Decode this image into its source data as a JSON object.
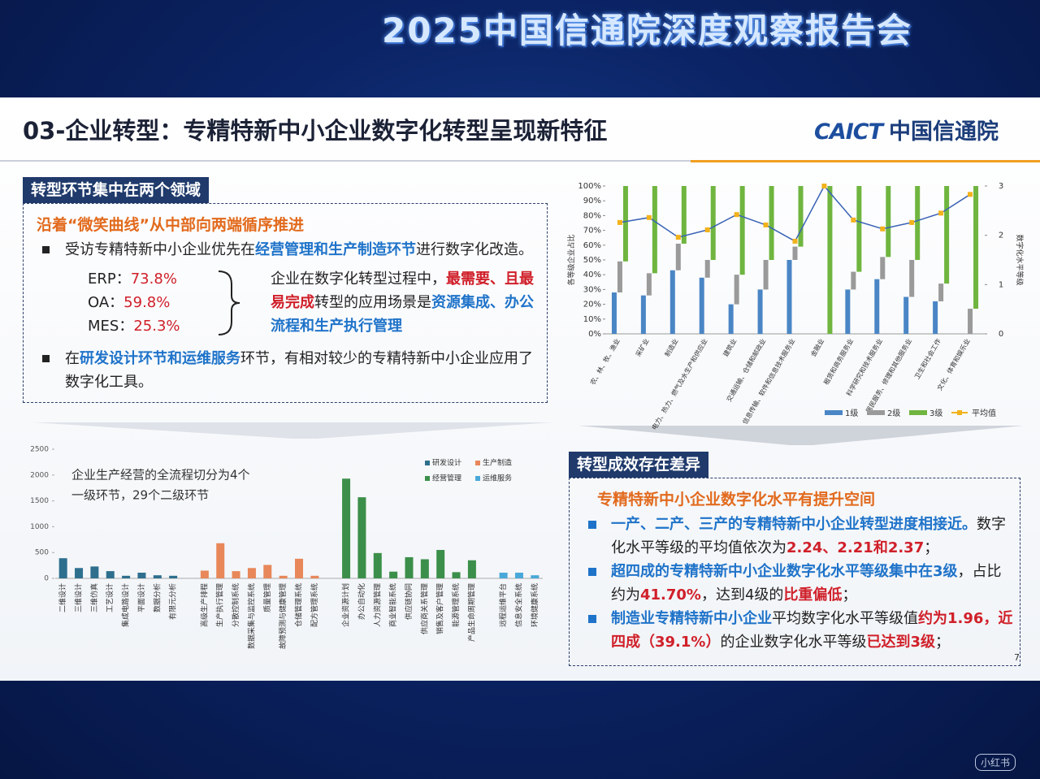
{
  "banner": {
    "title": "2025中国信通院深度观察报告会"
  },
  "slide": {
    "title": "03-企业转型：专精特新中小企业数字化转型呈现新特征",
    "logo_en": "CAICT",
    "logo_cn": "中国信通院",
    "page_number": "7"
  },
  "left": {
    "tag": "转型环节集中在两个领域",
    "heading": "沿着“微笑曲线”从中部向两端循序推进",
    "bullet1": [
      "受访专精特新中小企业优先在",
      "经营管理和生产制造环节",
      "进行数字化改造。"
    ],
    "items": [
      {
        "label": "ERP：",
        "value": "73.8%"
      },
      {
        "label": "OA：",
        "value": "59.8%"
      },
      {
        "label": "MES：",
        "value": "25.3%"
      }
    ],
    "note": [
      "企业在数字化转型过程中，",
      "最需要、且最易完成",
      "转型的应用场景是",
      "资源集成、办公流程和生产执行管理"
    ],
    "bullet2": [
      "在",
      "研发设计环节和运维服务",
      "环节，有相对较少的专精特新中小企业应用了数字化工具。"
    ]
  },
  "right": {
    "tag": "转型成效存在差异",
    "heading": "专精特新中小企业数字化水平有提升空间",
    "bullets": [
      [
        "一产、二产、三产的专精特新中小企业转型进度相接近。",
        "数字化水平等级的平均值依次为",
        "2.24、2.21和2.37",
        "；"
      ],
      [
        "超四成的专精特新中小企业数字化水平等级集中在3级",
        "，占比约为",
        "41.70%",
        "，达到4级的",
        "比重偏低",
        "；"
      ],
      [
        "制造业专精特新中小企业",
        "平均数字化水平等级值",
        "约为1.96，近四成（39.1%）",
        "的企业数字化水平等级",
        "已达到3级",
        "；"
      ]
    ]
  },
  "watermark": "小红书",
  "chart_data": [
    {
      "type": "stacked-bar-line",
      "y_label": "各等级企业占比",
      "y2_label": "数字化水平等级",
      "categories": [
        "农、林、牧、渔业",
        "采矿业",
        "制造业",
        "电力、热力、燃气及水生产和供应业",
        "建筑业",
        "交通运输、仓储和邮政业",
        "信息传输、软件和信息技术服务业",
        "金融业",
        "租赁和商务服务业",
        "科学研究和技术服务业",
        "居民服务、修理和其他服务业",
        "卫生和社会工作",
        "文化、体育和娱乐业"
      ],
      "series": [
        {
          "name": "1级",
          "color": "#4a86c5",
          "values": [
            28,
            26,
            43,
            38,
            20,
            30,
            50,
            0,
            30,
            37,
            25,
            22,
            0
          ]
        },
        {
          "name": "2级",
          "color": "#9a9a9a",
          "values": [
            21,
            15,
            18,
            12,
            20,
            20,
            9,
            0,
            12,
            15,
            25,
            12,
            17
          ]
        },
        {
          "name": "3级",
          "color": "#6fb53f",
          "values": [
            51,
            59,
            39,
            50,
            60,
            50,
            41,
            100,
            58,
            48,
            50,
            66,
            83
          ]
        },
        {
          "name": "平均值",
          "color": "#3a63b5",
          "marker_color": "#f2b21b",
          "axis": "y2",
          "values": [
            2.26,
            2.36,
            1.96,
            2.11,
            2.42,
            2.21,
            1.88,
            3.0,
            2.31,
            2.13,
            2.26,
            2.45,
            2.83
          ]
        }
      ],
      "ylim": [
        0,
        100
      ],
      "yticks": [
        {
          "value": 0,
          "label": "0%"
        },
        {
          "value": 10,
          "label": "10%"
        },
        {
          "value": 20,
          "label": "20%"
        },
        {
          "value": 30,
          "label": "30%"
        },
        {
          "value": 40,
          "label": "40%"
        },
        {
          "value": 50,
          "label": "50%"
        },
        {
          "value": 60,
          "label": "60%"
        },
        {
          "value": 70,
          "label": "70%"
        },
        {
          "value": 80,
          "label": "80%"
        },
        {
          "value": 90,
          "label": "90%"
        },
        {
          "value": 100,
          "label": "100%"
        }
      ],
      "y2lim": [
        0,
        3
      ],
      "y2ticks": [
        0,
        1,
        2,
        3
      ],
      "legend": "bottom"
    },
    {
      "type": "bar",
      "annotation": [
        "企业生产经营的全流程切分为4个",
        "一级环节，29个二级环节"
      ],
      "categories": [
        "二维设计",
        "三维设计",
        "三维仿真",
        "工艺设计",
        "集成电路设计",
        "平面设计",
        "数据分析",
        "有限元分析",
        "高级生产排程",
        "生产执行管理",
        "分散控制系统",
        "数据采集与监控系统",
        "质量管理",
        "故障预测与健康管理",
        "仓储管理系统",
        "配方管理系统",
        "企业资源计划",
        "办公自动化",
        "人力资源管理",
        "商业智能系统",
        "供应链协同",
        "供应商关系管理",
        "销售及客户管理",
        "能源管理系统",
        "产品生命周期管理",
        "远程运维平台",
        "信息安全系统",
        "环境健康系统"
      ],
      "series": [
        {
          "name": "研发设计",
          "color": "#2e6f8e",
          "values": [
            390,
            200,
            230,
            140,
            50,
            110,
            60,
            50,
            null,
            null,
            null,
            null,
            null,
            null,
            null,
            null,
            null,
            null,
            null,
            null,
            null,
            null,
            null,
            null,
            null,
            null,
            null,
            null
          ]
        },
        {
          "name": "生产制造",
          "color": "#e8875a",
          "values": [
            null,
            null,
            null,
            null,
            null,
            null,
            null,
            null,
            150,
            680,
            140,
            200,
            260,
            50,
            380,
            50,
            null,
            null,
            null,
            null,
            null,
            null,
            null,
            null,
            null,
            null,
            null,
            null
          ]
        },
        {
          "name": "经营管理",
          "color": "#3c8f4a",
          "values": [
            null,
            null,
            null,
            null,
            null,
            null,
            null,
            null,
            null,
            null,
            null,
            null,
            null,
            null,
            null,
            null,
            1930,
            1570,
            490,
            130,
            410,
            370,
            550,
            120,
            350,
            null,
            null,
            null
          ]
        },
        {
          "name": "运维服务",
          "color": "#4aa8d8",
          "values": [
            null,
            null,
            null,
            null,
            null,
            null,
            null,
            null,
            null,
            null,
            null,
            null,
            null,
            null,
            null,
            null,
            null,
            null,
            null,
            null,
            null,
            null,
            null,
            null,
            null,
            110,
            110,
            60
          ]
        }
      ],
      "ylim": [
        0,
        2500
      ],
      "yticks": [
        0,
        500,
        1000,
        1500,
        2000,
        2500
      ],
      "legend": "top-right"
    }
  ]
}
